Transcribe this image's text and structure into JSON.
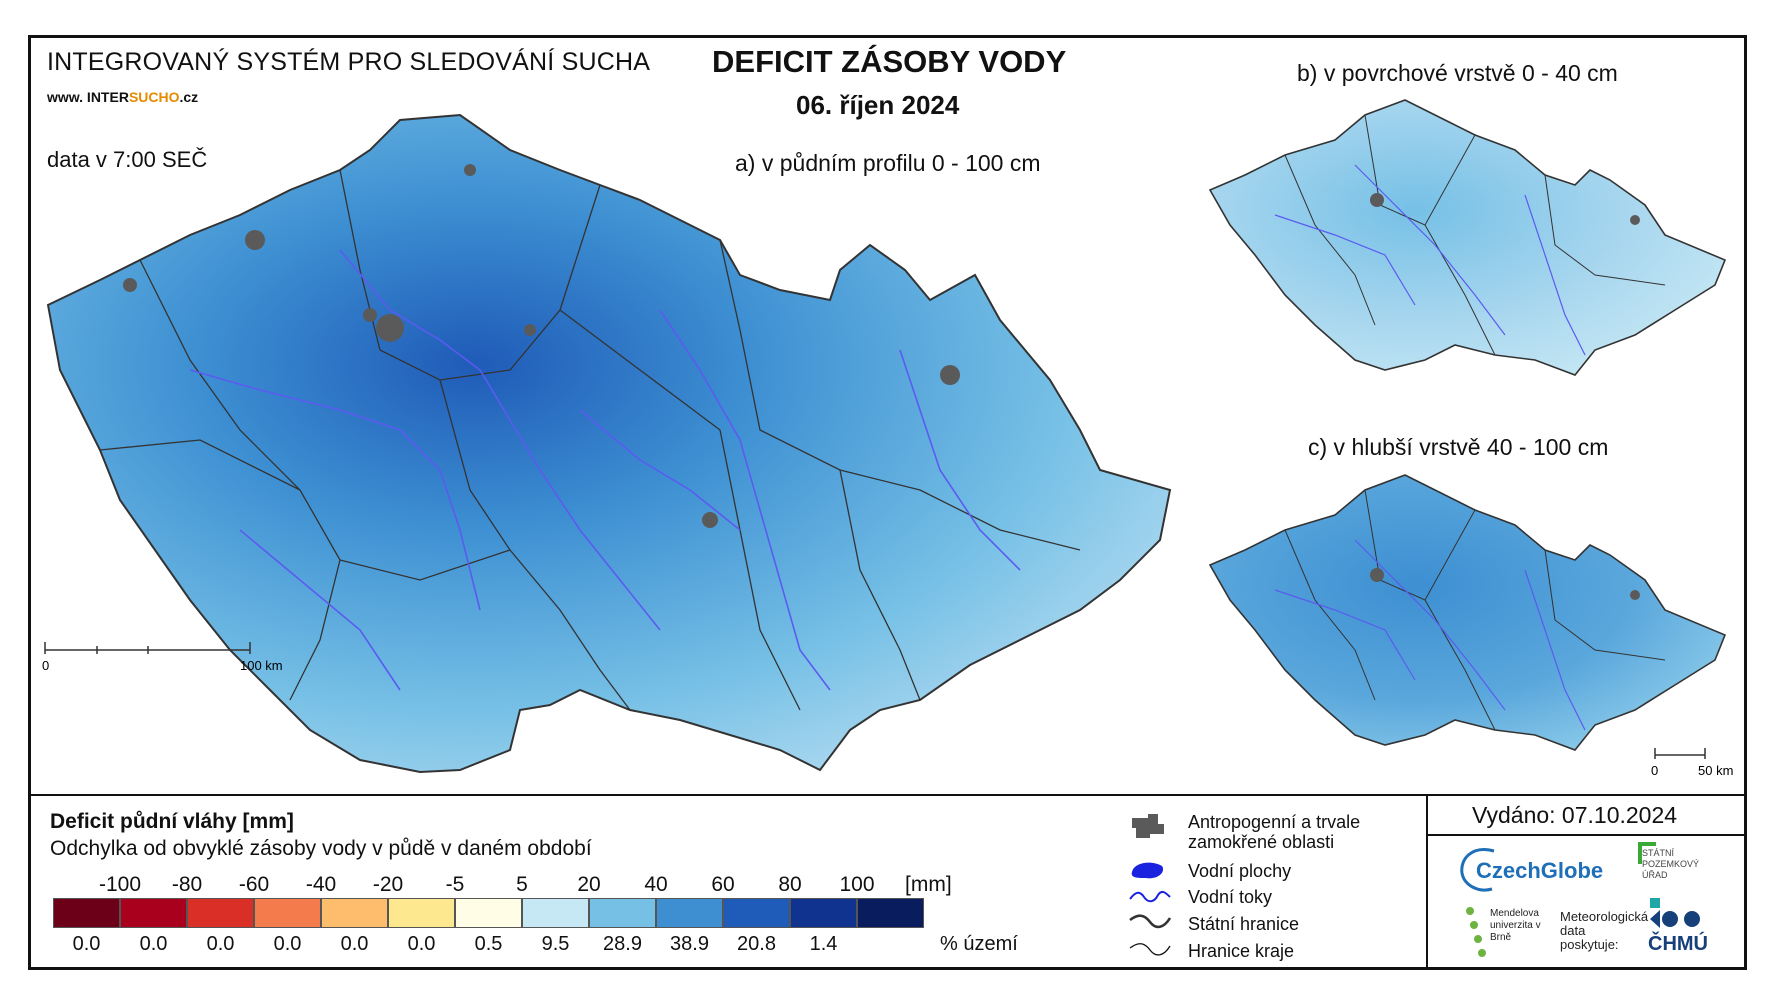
{
  "header": {
    "system_title": "INTEGROVANÝ SYSTÉM PRO SLEDOVÁNÍ SUCHA",
    "website_prefix": "www. INTER",
    "website_highlight": "SUCHO",
    "website_suffix": ".cz",
    "data_time": "data v 7:00 SEČ",
    "main_title": "DEFICIT ZÁSOBY VODY",
    "main_date": "06. říjen 2024"
  },
  "maps": {
    "a_title": "a) v půdním profilu 0 - 100 cm",
    "b_title": "b) v povrchové vrstvě 0 - 40 cm",
    "c_title": "c) v hlubší vrstvě 40 - 100 cm",
    "scale_a": {
      "start": "0",
      "end": "100 km"
    },
    "scale_bc": {
      "start": "0",
      "end": "50 km"
    }
  },
  "legend": {
    "title": "Deficit půdní vláhy  [mm]",
    "subtitle": "Odchylka od obvyklé zásoby vody v půdě v daném období",
    "ticks": [
      "-100",
      "-80",
      "-60",
      "-40",
      "-20",
      "-5",
      "5",
      "20",
      "40",
      "60",
      "80",
      "100"
    ],
    "unit": "[mm]",
    "classes": [
      {
        "color": "#6b0018",
        "pct": "0.0"
      },
      {
        "color": "#a8001d",
        "pct": "0.0"
      },
      {
        "color": "#d92f26",
        "pct": "0.0"
      },
      {
        "color": "#f37b4c",
        "pct": "0.0"
      },
      {
        "color": "#fdbd6c",
        "pct": "0.0"
      },
      {
        "color": "#fde78f",
        "pct": "0.0"
      },
      {
        "color": "#fffde6",
        "pct": "0.5"
      },
      {
        "color": "#c6e8f4",
        "pct": "9.5"
      },
      {
        "color": "#76c0e6",
        "pct": "28.9"
      },
      {
        "color": "#3d8fd2",
        "pct": "38.9"
      },
      {
        "color": "#1f5bb8",
        "pct": "20.8"
      },
      {
        "color": "#10338f",
        "pct": "1.4"
      },
      {
        "color": "#091c5e",
        "pct": ""
      }
    ],
    "pct_label": "% území"
  },
  "symbols": {
    "urban": "Antropogenní a trvale zamokřené oblasti",
    "water_bodies": "Vodní plochy",
    "rivers": "Vodní toky",
    "state_border": "Státní hranice",
    "region_border": "Hranice kraje"
  },
  "footer": {
    "issued": "Vydáno: 07.10.2024",
    "czechglobe": "CzechGlobe",
    "spu": "STÁTNÍ POZEMKOVÝ ÚŘAD",
    "mendel": "Mendelova univerzita v Brně",
    "chmu_note": "Meteorologická data poskytuje:",
    "chmu": "ČHMÚ"
  },
  "colors": {
    "map_main_fill": "#3d8fd2",
    "map_light_fill": "#a9d7ef",
    "river": "#5b5bf0",
    "urban": "#5a5a5a"
  }
}
